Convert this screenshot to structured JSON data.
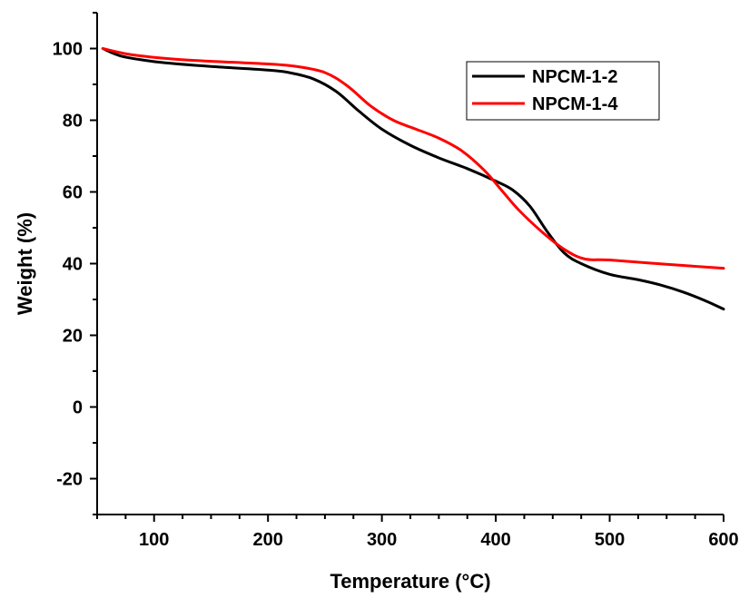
{
  "chart_data": {
    "type": "line",
    "xlabel": "Temperature (°C)",
    "ylabel": "Weight (%)",
    "xlim": [
      50,
      600
    ],
    "ylim": [
      -30,
      110
    ],
    "x_ticks": [
      100,
      200,
      300,
      400,
      500,
      600
    ],
    "y_ticks": [
      -20,
      0,
      20,
      40,
      60,
      80,
      100
    ],
    "x_minor_step": 25,
    "y_minor_step": 10,
    "grid": false,
    "legend_position": "top-right",
    "series": [
      {
        "name": "NPCM-1-2",
        "color": "#000000",
        "points": [
          [
            55,
            100
          ],
          [
            70,
            98
          ],
          [
            90,
            96.8
          ],
          [
            110,
            96
          ],
          [
            150,
            95
          ],
          [
            200,
            94
          ],
          [
            220,
            93.2
          ],
          [
            240,
            91.5
          ],
          [
            260,
            88
          ],
          [
            280,
            82.5
          ],
          [
            300,
            77.5
          ],
          [
            325,
            73
          ],
          [
            350,
            69.5
          ],
          [
            375,
            66.5
          ],
          [
            400,
            63
          ],
          [
            415,
            60.5
          ],
          [
            430,
            56
          ],
          [
            445,
            49
          ],
          [
            460,
            43
          ],
          [
            475,
            40
          ],
          [
            500,
            37
          ],
          [
            525,
            35.5
          ],
          [
            545,
            34
          ],
          [
            565,
            32
          ],
          [
            585,
            29.5
          ],
          [
            600,
            27.3
          ]
        ]
      },
      {
        "name": "NPCM-1-4",
        "color": "#ff0000",
        "points": [
          [
            55,
            100
          ],
          [
            80,
            98.3
          ],
          [
            120,
            97
          ],
          [
            160,
            96.3
          ],
          [
            200,
            95.7
          ],
          [
            225,
            95
          ],
          [
            250,
            93.3
          ],
          [
            270,
            89.5
          ],
          [
            290,
            84
          ],
          [
            310,
            80
          ],
          [
            330,
            77.5
          ],
          [
            350,
            75
          ],
          [
            370,
            71.5
          ],
          [
            390,
            66
          ],
          [
            405,
            60.5
          ],
          [
            420,
            55
          ],
          [
            440,
            49
          ],
          [
            460,
            44
          ],
          [
            478,
            41.3
          ],
          [
            500,
            41
          ],
          [
            550,
            39.8
          ],
          [
            600,
            38.7
          ]
        ]
      }
    ]
  }
}
